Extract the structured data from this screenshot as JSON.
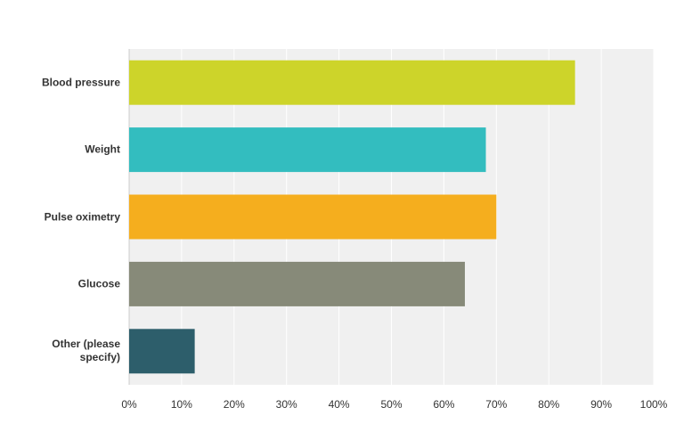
{
  "chart_data": {
    "type": "bar",
    "orientation": "horizontal",
    "categories": [
      "Blood pressure",
      "Weight",
      "Pulse oximetry",
      "Glucose",
      "Other (please specify)"
    ],
    "values": [
      85,
      68,
      70,
      64,
      12.5
    ],
    "colors": [
      "#cdd42a",
      "#33bdbf",
      "#f5ae1e",
      "#878a79",
      "#2d5e6b"
    ],
    "xlim": [
      0,
      100
    ],
    "xticks": [
      {
        "value": 0,
        "label": "0%"
      },
      {
        "value": 10,
        "label": "10%"
      },
      {
        "value": 20,
        "label": "20%"
      },
      {
        "value": 30,
        "label": "30%"
      },
      {
        "value": 40,
        "label": "40%"
      },
      {
        "value": 50,
        "label": "50%"
      },
      {
        "value": 60,
        "label": "60%"
      },
      {
        "value": 70,
        "label": "70%"
      },
      {
        "value": 80,
        "label": "80%"
      },
      {
        "value": 90,
        "label": "90%"
      },
      {
        "value": 100,
        "label": "100%"
      }
    ],
    "grid": true
  }
}
